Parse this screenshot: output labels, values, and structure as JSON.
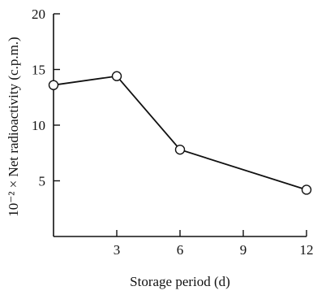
{
  "chart_data": {
    "type": "line",
    "xlabel": "Storage period (d)",
    "ylabel": "10⁻² × Net radioactivity (c.p.m.)",
    "xlim": [
      0,
      12
    ],
    "ylim": [
      0,
      20
    ],
    "xticks": [
      3,
      6,
      9,
      12
    ],
    "yticks": [
      5,
      10,
      15,
      20
    ],
    "grid": false,
    "series": [
      {
        "x": [
          0,
          3,
          6,
          12
        ],
        "y": [
          13.6,
          14.4,
          7.8,
          4.2
        ]
      }
    ]
  }
}
